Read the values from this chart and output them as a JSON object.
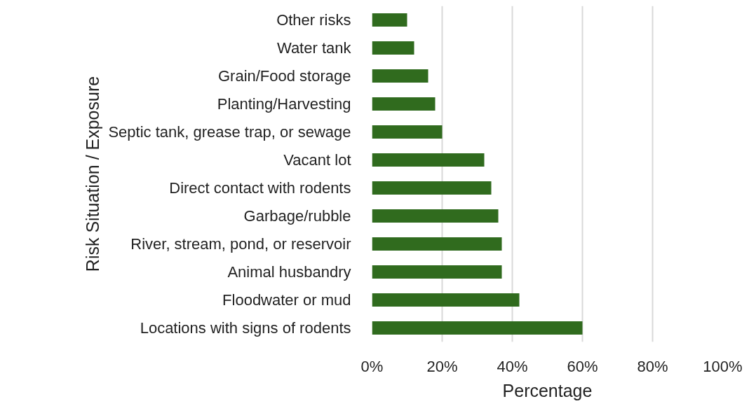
{
  "chart_data": {
    "type": "bar",
    "orientation": "horizontal",
    "xlabel": "Percentage",
    "ylabel": "Risk Situation / Exposure",
    "categories": [
      "Other risks",
      "Water tank",
      "Grain/Food storage",
      "Planting/Harvesting",
      "Septic tank, grease trap, or sewage",
      "Vacant lot",
      "Direct contact with rodents",
      "Garbage/rubble",
      "River, stream, pond, or reservoir",
      "Animal husbandry",
      "Floodwater or mud",
      "Locations with signs of rodents"
    ],
    "values": [
      10,
      12,
      16,
      18,
      20,
      32,
      34,
      36,
      37,
      37,
      42,
      60
    ],
    "color": "#306b1e",
    "xlim": [
      0,
      100
    ],
    "xticks": [
      {
        "value": 0,
        "label": "0%"
      },
      {
        "value": 20,
        "label": "20%"
      },
      {
        "value": 40,
        "label": "40%"
      },
      {
        "value": 60,
        "label": "60%"
      },
      {
        "value": 80,
        "label": "80%"
      },
      {
        "value": 100,
        "label": "100%"
      }
    ],
    "grid": "x"
  }
}
